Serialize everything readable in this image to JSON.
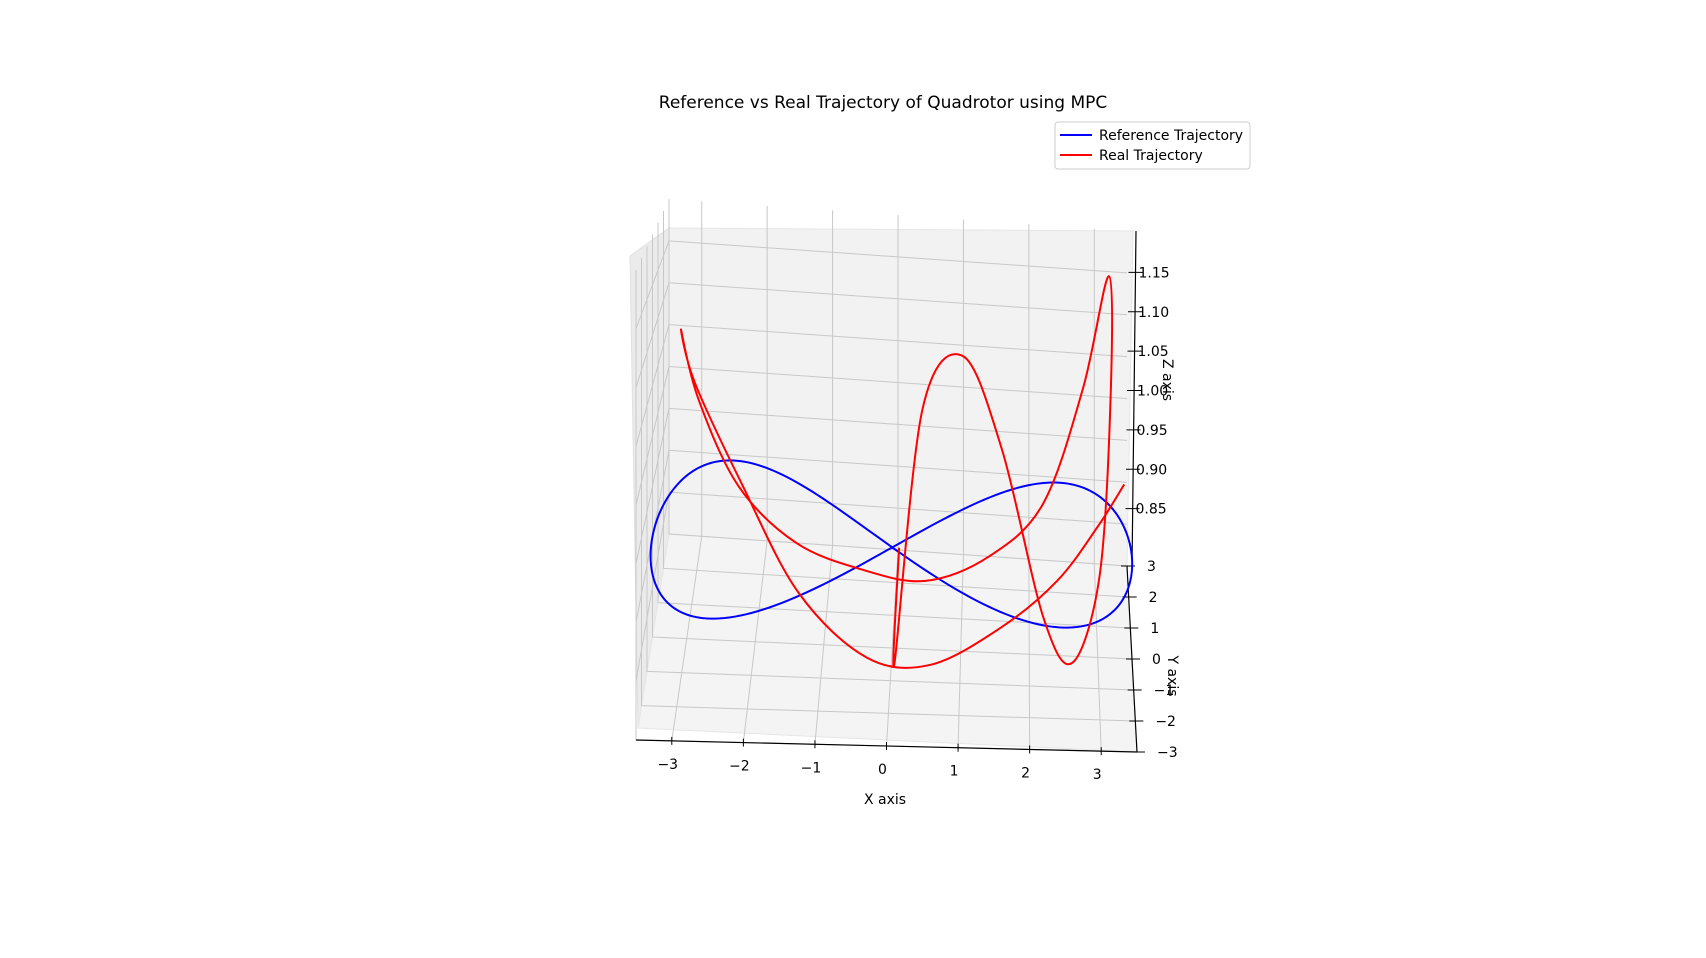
{
  "chart_data": {
    "type": "line",
    "projection": "3d",
    "title": "Reference vs Real Trajectory of Quadrotor using MPC",
    "xlabel": "X axis",
    "ylabel": "Y axis",
    "zlabel": "Z axis",
    "xlim": [
      -3.5,
      3.5
    ],
    "ylim": [
      -3,
      3
    ],
    "zlim": [
      0.8,
      1.2
    ],
    "x_ticks": [
      "−3",
      "−2",
      "−1",
      "0",
      "1",
      "2",
      "3"
    ],
    "y_ticks": [
      "−3",
      "−2",
      "−1",
      "0",
      "1",
      "2",
      "3"
    ],
    "z_ticks": [
      "0.85",
      "0.90",
      "0.95",
      "1.00",
      "1.05",
      "1.10",
      "1.15"
    ],
    "grid": true,
    "legend_position": "upper-right",
    "colors": {
      "reference": "#0000ff",
      "real": "#ff0000"
    },
    "series": [
      {
        "name": "Reference Trajectory",
        "shape": "figure-eight",
        "x": [
          0.0,
          1.24,
          2.35,
          3.19,
          3.5,
          3.19,
          2.35,
          1.24,
          0.0,
          -1.24,
          -2.35,
          -3.19,
          -3.5,
          -3.19,
          -2.35,
          -1.24,
          0.0
        ],
        "y": [
          0.0,
          2.77,
          2.0,
          0.77,
          0.0,
          -0.77,
          -2.0,
          -2.77,
          0.0,
          2.77,
          2.0,
          0.77,
          0.0,
          -0.77,
          -2.0,
          -2.77,
          0.0
        ],
        "z": [
          0.9,
          0.9,
          0.9,
          0.9,
          0.9,
          0.9,
          0.9,
          0.9,
          0.9,
          0.9,
          0.9,
          0.9,
          0.9,
          0.9,
          0.9,
          0.9,
          0.9
        ]
      },
      {
        "name": "Real Trajectory",
        "x": [
          0.1,
          0.1,
          0.4,
          1.0,
          1.6,
          2.2,
          2.6,
          3.0,
          3.2,
          3.2,
          2.8,
          2.2,
          1.4,
          0.5,
          -0.4,
          -1.4,
          -2.3,
          -3.0,
          -3.3,
          -3.0,
          -2.2,
          -1.3,
          -0.3,
          0.6,
          1.6,
          2.4,
          3.0,
          3.4
        ],
        "y": [
          0.0,
          -2.6,
          1.8,
          2.4,
          1.0,
          -1.6,
          -2.8,
          -1.6,
          0.6,
          1.8,
          1.0,
          0.0,
          -0.6,
          -0.8,
          -0.5,
          0.0,
          0.9,
          2.4,
          2.8,
          1.6,
          0.2,
          -1.4,
          -2.4,
          -2.6,
          -2.0,
          -1.0,
          0.0,
          0.6
        ],
        "z": [
          0.9,
          0.86,
          1.0,
          1.05,
          0.98,
          0.88,
          0.87,
          0.92,
          1.05,
          1.16,
          1.05,
          0.95,
          0.91,
          0.89,
          0.89,
          0.9,
          0.93,
          0.98,
          1.05,
          1.02,
          0.95,
          0.89,
          0.86,
          0.86,
          0.88,
          0.9,
          0.93,
          0.96
        ]
      }
    ]
  }
}
